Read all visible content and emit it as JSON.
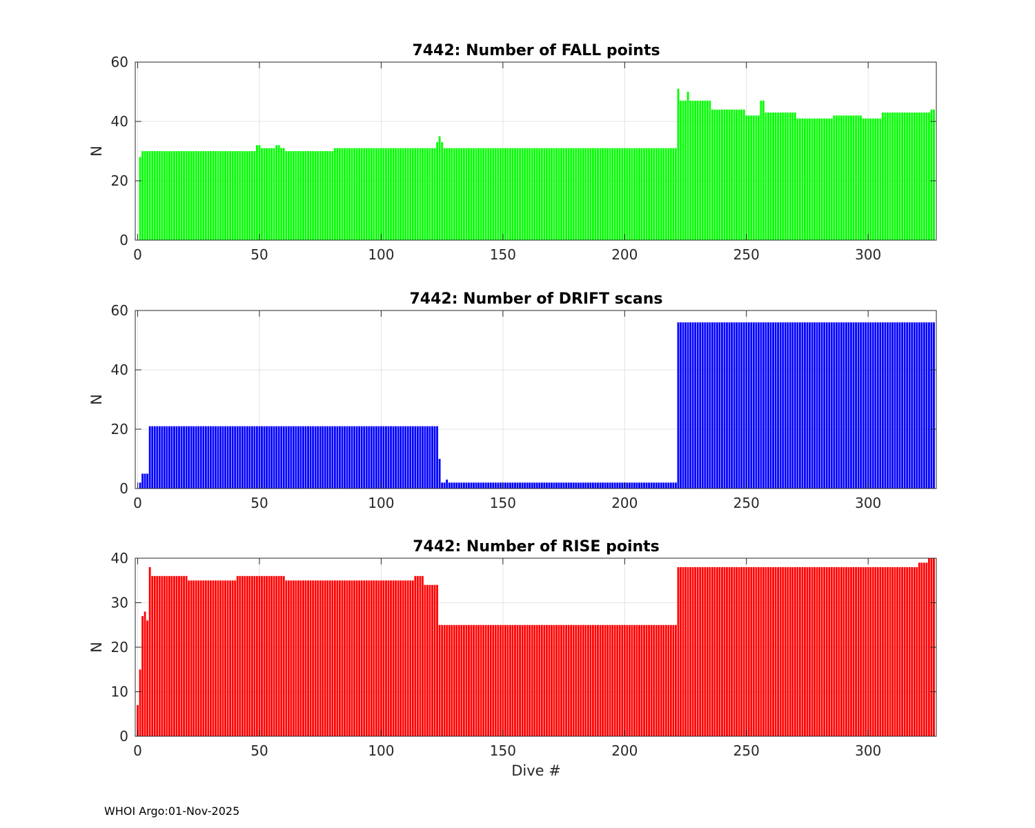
{
  "footer": "WHOI Argo:01-Nov-2025",
  "chart_data": [
    {
      "type": "bar",
      "title": "7442: Number of FALL points",
      "xlabel": "",
      "ylabel": "N",
      "color": "#00ff00",
      "xlim": [
        -1,
        328
      ],
      "ylim": [
        0,
        60
      ],
      "xticks": [
        0,
        50,
        100,
        150,
        200,
        250,
        300
      ],
      "yticks": [
        0,
        20,
        40,
        60
      ],
      "segments": [
        {
          "from": 1,
          "to": 1,
          "value": 28
        },
        {
          "from": 2,
          "to": 48,
          "value": 30
        },
        {
          "from": 49,
          "to": 50,
          "value": 32
        },
        {
          "from": 51,
          "to": 56,
          "value": 31
        },
        {
          "from": 57,
          "to": 58,
          "value": 32
        },
        {
          "from": 59,
          "to": 60,
          "value": 31
        },
        {
          "from": 61,
          "to": 80,
          "value": 30
        },
        {
          "from": 81,
          "to": 120,
          "value": 31
        },
        {
          "from": 121,
          "to": 122,
          "value": 31
        },
        {
          "from": 123,
          "to": 123,
          "value": 33
        },
        {
          "from": 124,
          "to": 124,
          "value": 35
        },
        {
          "from": 125,
          "to": 125,
          "value": 33
        },
        {
          "from": 126,
          "to": 130,
          "value": 31
        },
        {
          "from": 131,
          "to": 221,
          "value": 31
        },
        {
          "from": 222,
          "to": 222,
          "value": 51
        },
        {
          "from": 223,
          "to": 225,
          "value": 47
        },
        {
          "from": 226,
          "to": 226,
          "value": 50
        },
        {
          "from": 227,
          "to": 235,
          "value": 47
        },
        {
          "from": 236,
          "to": 249,
          "value": 44
        },
        {
          "from": 250,
          "to": 255,
          "value": 42
        },
        {
          "from": 256,
          "to": 257,
          "value": 47
        },
        {
          "from": 258,
          "to": 270,
          "value": 43
        },
        {
          "from": 271,
          "to": 285,
          "value": 41
        },
        {
          "from": 286,
          "to": 297,
          "value": 42
        },
        {
          "from": 298,
          "to": 305,
          "value": 41
        },
        {
          "from": 306,
          "to": 325,
          "value": 43
        },
        {
          "from": 326,
          "to": 327,
          "value": 44
        }
      ]
    },
    {
      "type": "bar",
      "title": "7442: Number of DRIFT scans",
      "xlabel": "",
      "ylabel": "N",
      "color": "#0000ff",
      "xlim": [
        -1,
        328
      ],
      "ylim": [
        0,
        60
      ],
      "xticks": [
        0,
        50,
        100,
        150,
        200,
        250,
        300
      ],
      "yticks": [
        0,
        20,
        40,
        60
      ],
      "segments": [
        {
          "from": 0,
          "to": 0,
          "value": 0
        },
        {
          "from": 1,
          "to": 1,
          "value": 2
        },
        {
          "from": 2,
          "to": 4,
          "value": 5
        },
        {
          "from": 5,
          "to": 123,
          "value": 21
        },
        {
          "from": 124,
          "to": 124,
          "value": 10
        },
        {
          "from": 125,
          "to": 126,
          "value": 2
        },
        {
          "from": 127,
          "to": 127,
          "value": 3
        },
        {
          "from": 128,
          "to": 221,
          "value": 2
        },
        {
          "from": 222,
          "to": 327,
          "value": 56
        }
      ]
    },
    {
      "type": "bar",
      "title": "7442: Number of RISE points",
      "xlabel": "Dive #",
      "ylabel": "N",
      "color": "#ff0000",
      "xlim": [
        -1,
        328
      ],
      "ylim": [
        0,
        40
      ],
      "xticks": [
        0,
        50,
        100,
        150,
        200,
        250,
        300
      ],
      "yticks": [
        0,
        10,
        20,
        30,
        40
      ],
      "segments": [
        {
          "from": 0,
          "to": 0,
          "value": 7
        },
        {
          "from": 1,
          "to": 1,
          "value": 15
        },
        {
          "from": 2,
          "to": 2,
          "value": 27
        },
        {
          "from": 3,
          "to": 3,
          "value": 28
        },
        {
          "from": 4,
          "to": 4,
          "value": 26
        },
        {
          "from": 5,
          "to": 5,
          "value": 38
        },
        {
          "from": 6,
          "to": 20,
          "value": 36
        },
        {
          "from": 21,
          "to": 40,
          "value": 35
        },
        {
          "from": 41,
          "to": 60,
          "value": 36
        },
        {
          "from": 61,
          "to": 80,
          "value": 35
        },
        {
          "from": 81,
          "to": 100,
          "value": 35
        },
        {
          "from": 101,
          "to": 113,
          "value": 35
        },
        {
          "from": 114,
          "to": 117,
          "value": 36
        },
        {
          "from": 118,
          "to": 123,
          "value": 34
        },
        {
          "from": 124,
          "to": 221,
          "value": 25
        },
        {
          "from": 222,
          "to": 240,
          "value": 38
        },
        {
          "from": 241,
          "to": 260,
          "value": 38
        },
        {
          "from": 261,
          "to": 280,
          "value": 38
        },
        {
          "from": 281,
          "to": 300,
          "value": 38
        },
        {
          "from": 301,
          "to": 320,
          "value": 38
        },
        {
          "from": 321,
          "to": 324,
          "value": 39
        },
        {
          "from": 325,
          "to": 327,
          "value": 40
        }
      ]
    }
  ]
}
